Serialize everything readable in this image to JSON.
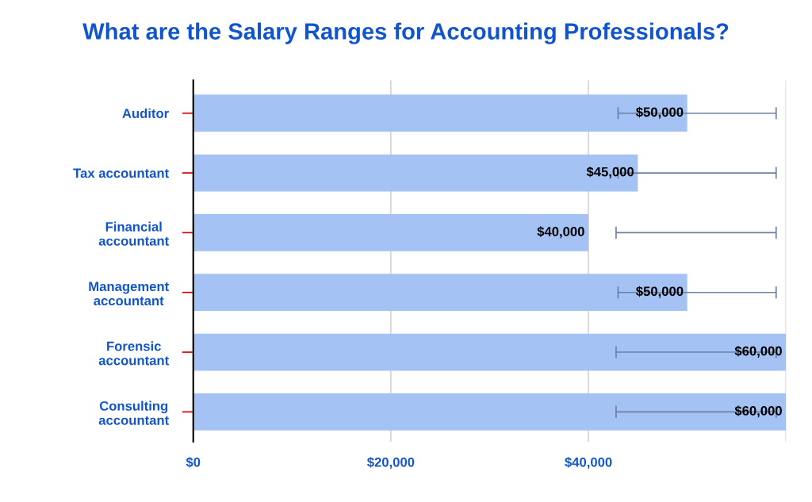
{
  "chart_data": {
    "type": "bar",
    "orientation": "horizontal",
    "title": "What are the Salary Ranges for Accounting Professionals?",
    "categories": [
      "Auditor",
      "Tax accountant",
      "Financial\naccountant",
      "Management\naccountant",
      "Forensic\naccountant",
      "Consulting\naccountant"
    ],
    "values": [
      50000,
      45000,
      40000,
      50000,
      60000,
      60000
    ],
    "errors": [
      [
        43000,
        59000
      ],
      [
        43000,
        59000
      ],
      [
        42800,
        59000
      ],
      [
        43000,
        59000
      ],
      [
        42800,
        59000
      ],
      [
        42800,
        59000
      ]
    ],
    "value_labels": [
      "$50,000",
      "$45,000",
      "$40,000",
      "$50,000",
      "$60,000",
      "$60,000"
    ],
    "color": "#a4c2f4",
    "xlim": [
      0,
      60000
    ],
    "xticks": [
      {
        "value": 0,
        "label": "$0"
      },
      {
        "value": 20000,
        "label": "$20,000"
      },
      {
        "value": 40000,
        "label": "$40,000"
      },
      {
        "value": 60000,
        "label": null
      }
    ],
    "grid": "x",
    "legend": false
  }
}
